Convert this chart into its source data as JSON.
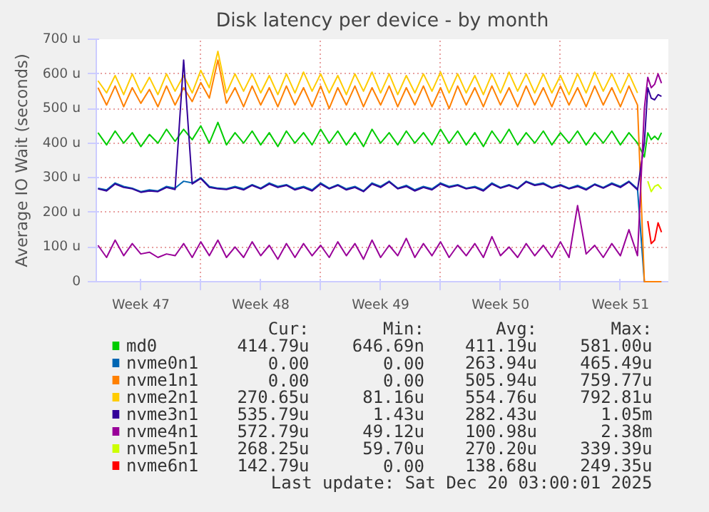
{
  "chart_data": {
    "type": "line",
    "title": "Disk latency per device - by month",
    "ylabel": "Average IO Wait (seconds)",
    "x": [
      "2025-11-18T00:00",
      "2025-11-18T12:00",
      "2025-11-19T00:00",
      "2025-11-19T12:00",
      "2025-11-20T00:00",
      "2025-11-20T12:00",
      "2025-11-21T00:00",
      "2025-11-21T12:00",
      "2025-11-22T00:00",
      "2025-11-22T12:00",
      "2025-11-23T00:00",
      "2025-11-23T12:00",
      "2025-11-24T00:00",
      "2025-11-24T12:00",
      "2025-11-25T00:00",
      "2025-11-25T12:00",
      "2025-11-26T00:00",
      "2025-11-26T12:00",
      "2025-11-27T00:00",
      "2025-11-27T12:00",
      "2025-11-28T00:00",
      "2025-11-28T12:00",
      "2025-11-29T00:00",
      "2025-11-29T12:00",
      "2025-11-30T00:00",
      "2025-11-30T12:00",
      "2025-12-01T00:00",
      "2025-12-01T12:00",
      "2025-12-02T00:00",
      "2025-12-02T12:00",
      "2025-12-03T00:00",
      "2025-12-03T12:00",
      "2025-12-04T00:00",
      "2025-12-04T12:00",
      "2025-12-05T00:00",
      "2025-12-05T12:00",
      "2025-12-06T00:00",
      "2025-12-06T12:00",
      "2025-12-07T00:00",
      "2025-12-07T12:00",
      "2025-12-08T00:00",
      "2025-12-08T12:00",
      "2025-12-09T00:00",
      "2025-12-09T12:00",
      "2025-12-10T00:00",
      "2025-12-10T12:00",
      "2025-12-11T00:00",
      "2025-12-11T12:00",
      "2025-12-12T00:00",
      "2025-12-12T12:00",
      "2025-12-13T00:00",
      "2025-12-13T12:00",
      "2025-12-14T00:00",
      "2025-12-14T12:00",
      "2025-12-15T00:00",
      "2025-12-15T12:00",
      "2025-12-16T00:00",
      "2025-12-16T12:00",
      "2025-12-17T00:00",
      "2025-12-17T12:00",
      "2025-12-18T00:00",
      "2025-12-18T12:00",
      "2025-12-19T00:00",
      "2025-12-19T12:00",
      "2025-12-19T21:36",
      "2025-12-20T02:24",
      "2025-12-20T07:12",
      "2025-12-20T12:00",
      "2025-12-20T16:48",
      "2025-12-20T21:36"
    ],
    "xlim": [
      "2025-11-17T21:36",
      "2025-12-21T07:12"
    ],
    "xticks": [
      {
        "value": "2025-11-20T12:00",
        "label": "Week 47"
      },
      {
        "value": "2025-11-24",
        "label": null
      },
      {
        "value": "2025-11-27T12:00",
        "label": "Week 48"
      },
      {
        "value": "2025-12-01",
        "label": null
      },
      {
        "value": "2025-12-04T12:00",
        "label": "Week 49"
      },
      {
        "value": "2025-12-08",
        "label": null
      },
      {
        "value": "2025-12-11T12:00",
        "label": "Week 50"
      },
      {
        "value": "2025-12-15",
        "label": null
      },
      {
        "value": "2025-12-18T12:00",
        "label": "Week 51"
      }
    ],
    "ylim": [
      0,
      700
    ],
    "yticks": [
      0,
      {
        "value": 100,
        "label": "100 u"
      },
      {
        "value": 200,
        "label": "200 u"
      },
      {
        "value": 300,
        "label": "300 u"
      },
      {
        "value": 400,
        "label": "400 u"
      },
      {
        "value": 500,
        "label": "500 u"
      },
      {
        "value": 600,
        "label": "600 u"
      },
      {
        "value": 700,
        "label": "700 u"
      }
    ],
    "grid": true,
    "legend": "bottom",
    "marker": "none",
    "line_style": "solid",
    "series": [
      {
        "name": "md0",
        "color": "#00cc00",
        "values": [
          430,
          395,
          435,
          400,
          430,
          390,
          425,
          400,
          440,
          405,
          440,
          410,
          450,
          400,
          460,
          395,
          430,
          400,
          435,
          395,
          430,
          390,
          435,
          400,
          430,
          395,
          440,
          400,
          435,
          395,
          430,
          390,
          440,
          400,
          430,
          395,
          435,
          400,
          430,
          395,
          440,
          400,
          435,
          395,
          430,
          390,
          435,
          400,
          440,
          395,
          430,
          400,
          435,
          395,
          430,
          400,
          435,
          395,
          430,
          400,
          435,
          395,
          430,
          400,
          360,
          430,
          410,
          420,
          410,
          430
        ]
      },
      {
        "name": "nvme0n1",
        "color": "#0066b3",
        "values": [
          270,
          265,
          285,
          275,
          270,
          260,
          265,
          262,
          275,
          270,
          290,
          285,
          300,
          275,
          270,
          268,
          275,
          268,
          280,
          270,
          285,
          275,
          280,
          268,
          275,
          265,
          285,
          270,
          280,
          268,
          275,
          262,
          285,
          275,
          290,
          270,
          278,
          265,
          275,
          268,
          285,
          275,
          280,
          270,
          275,
          265,
          285,
          272,
          280,
          270,
          290,
          280,
          285,
          272,
          280,
          270,
          278,
          268,
          282,
          272,
          285,
          275,
          290,
          268,
          0,
          0,
          null,
          null,
          null,
          null
        ]
      },
      {
        "name": "nvme1n1",
        "color": "#ff8000",
        "values": [
          560,
          510,
          565,
          505,
          560,
          515,
          555,
          505,
          565,
          510,
          560,
          520,
          575,
          530,
          640,
          515,
          560,
          505,
          565,
          510,
          560,
          505,
          565,
          510,
          560,
          505,
          565,
          500,
          560,
          510,
          565,
          505,
          560,
          510,
          565,
          505,
          560,
          510,
          565,
          505,
          560,
          500,
          565,
          510,
          560,
          505,
          565,
          510,
          560,
          505,
          565,
          510,
          560,
          505,
          565,
          510,
          560,
          505,
          565,
          510,
          560,
          505,
          565,
          510,
          0,
          0,
          0,
          0,
          0,
          0
        ]
      },
      {
        "name": "nvme2n1",
        "color": "#ffcc00",
        "values": [
          580,
          545,
          595,
          540,
          600,
          545,
          590,
          540,
          600,
          550,
          595,
          545,
          610,
          560,
          665,
          545,
          600,
          550,
          600,
          545,
          595,
          540,
          600,
          545,
          605,
          550,
          600,
          545,
          595,
          540,
          600,
          550,
          605,
          545,
          600,
          540,
          595,
          545,
          600,
          550,
          605,
          545,
          600,
          545,
          595,
          540,
          600,
          545,
          605,
          550,
          600,
          545,
          600,
          545,
          595,
          540,
          600,
          545,
          605,
          550,
          600,
          545,
          600,
          545,
          null,
          null,
          null,
          null,
          null,
          null
        ]
      },
      {
        "name": "nvme3n1",
        "color": "#330099",
        "values": [
          268,
          262,
          282,
          272,
          268,
          258,
          262,
          260,
          272,
          266,
          640,
          282,
          298,
          272,
          268,
          266,
          272,
          265,
          278,
          268,
          282,
          272,
          278,
          265,
          272,
          262,
          282,
          268,
          278,
          265,
          272,
          260,
          282,
          272,
          288,
          268,
          275,
          262,
          272,
          265,
          282,
          272,
          278,
          268,
          272,
          262,
          282,
          270,
          278,
          268,
          288,
          278,
          282,
          270,
          278,
          268,
          275,
          265,
          280,
          270,
          282,
          272,
          288,
          265,
          400,
          560,
          530,
          525,
          540,
          535
        ]
      },
      {
        "name": "nvme4n1",
        "color": "#990099",
        "values": [
          105,
          70,
          120,
          75,
          110,
          80,
          85,
          70,
          80,
          75,
          110,
          70,
          115,
          75,
          120,
          70,
          100,
          70,
          115,
          75,
          105,
          65,
          110,
          70,
          110,
          75,
          105,
          70,
          115,
          75,
          110,
          65,
          120,
          70,
          105,
          75,
          125,
          70,
          110,
          75,
          115,
          70,
          105,
          75,
          110,
          70,
          130,
          75,
          100,
          70,
          110,
          75,
          105,
          70,
          115,
          70,
          220,
          80,
          105,
          70,
          110,
          75,
          150,
          75,
          500,
          590,
          560,
          570,
          600,
          573
        ]
      },
      {
        "name": "nvme5n1",
        "color": "#ccff00",
        "values": [
          null,
          null,
          null,
          null,
          null,
          null,
          null,
          null,
          null,
          null,
          null,
          null,
          null,
          null,
          null,
          null,
          null,
          null,
          null,
          null,
          null,
          null,
          null,
          null,
          null,
          null,
          null,
          null,
          null,
          null,
          null,
          null,
          null,
          null,
          null,
          null,
          null,
          null,
          null,
          null,
          null,
          null,
          null,
          null,
          null,
          null,
          null,
          null,
          null,
          null,
          null,
          null,
          null,
          null,
          null,
          null,
          null,
          null,
          null,
          null,
          null,
          null,
          null,
          null,
          null,
          290,
          260,
          275,
          280,
          268
        ]
      },
      {
        "name": "nvme6n1",
        "color": "#ff0000",
        "values": [
          null,
          null,
          null,
          null,
          null,
          null,
          null,
          null,
          null,
          null,
          null,
          null,
          null,
          null,
          null,
          null,
          null,
          null,
          null,
          null,
          null,
          null,
          null,
          null,
          null,
          null,
          null,
          null,
          null,
          null,
          null,
          null,
          null,
          null,
          null,
          null,
          null,
          null,
          null,
          null,
          null,
          null,
          null,
          null,
          null,
          null,
          null,
          null,
          null,
          null,
          null,
          null,
          null,
          null,
          null,
          null,
          null,
          null,
          null,
          null,
          null,
          null,
          null,
          null,
          null,
          175,
          110,
          120,
          170,
          143
        ]
      }
    ],
    "annotations": [
      "Cur:",
      "Min:",
      "Avg:",
      "Max:",
      "414.79u",
      "646.69n",
      "411.19u",
      "581.00u",
      "0.00",
      "0.00",
      "263.94u",
      "465.49u",
      "0.00",
      "0.00",
      "505.94u",
      "759.77u",
      "270.65u",
      "81.16u",
      "554.76u",
      "792.81u",
      "535.79u",
      "1.43u",
      "282.43u",
      "1.05m",
      "572.79u",
      "49.12u",
      "100.98u",
      "2.38m",
      "268.25u",
      "59.70u",
      "270.20u",
      "339.39u",
      "142.79u",
      "0.00",
      "138.68u",
      "249.35u",
      "Last update: Sat Dec 20 03:00:01 2025"
    ]
  }
}
